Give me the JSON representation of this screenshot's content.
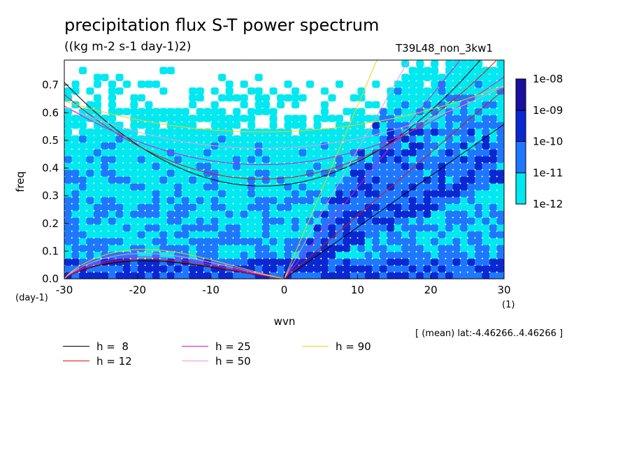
{
  "title": "precipitation flux S-T power spectrum",
  "subtitle": "((kg m-2 s-1 day-1)2)",
  "run_label": "T39L48_non_3kw1",
  "mean_note": "[ (mean) lat:-4.46266..4.46266 ]",
  "chart_data": {
    "type": "heatmap",
    "xlabel": "wvn",
    "ylabel": "freq",
    "x_unit": "(1)",
    "y_unit": "(day-1)",
    "xlim": [
      -30,
      30
    ],
    "ylim": [
      0,
      0.79
    ],
    "x_ticks": [
      "-30",
      "-20",
      "-10",
      "0",
      "10",
      "20",
      "30"
    ],
    "x_tick_values": [
      -30,
      -20,
      -10,
      0,
      10,
      20,
      30
    ],
    "y_ticks": [
      "0.0",
      "0.1",
      "0.2",
      "0.3",
      "0.4",
      "0.5",
      "0.6",
      "0.7"
    ],
    "y_tick_values": [
      0,
      0.1,
      0.2,
      0.3,
      0.4,
      0.5,
      0.6,
      0.7
    ],
    "color_levels": [
      "1e-12",
      "1e-11",
      "1e-10",
      "1e-09",
      "1e-08"
    ],
    "level_colors": [
      "#00e8f0",
      "#1e78ff",
      "#0a28d2",
      "#1a10a0",
      "#4a1ab0"
    ],
    "dispersion_curves": [
      {
        "name": "h =  8",
        "h": 8,
        "color": "#000000"
      },
      {
        "name": "h = 12",
        "h": 12,
        "color": "#e01010"
      },
      {
        "name": "h = 25",
        "h": 25,
        "color": "#e010d0"
      },
      {
        "name": "h = 50",
        "h": 50,
        "color": "#e89ae8"
      },
      {
        "name": "h = 90",
        "h": 90,
        "color": "#f0d010"
      }
    ]
  }
}
